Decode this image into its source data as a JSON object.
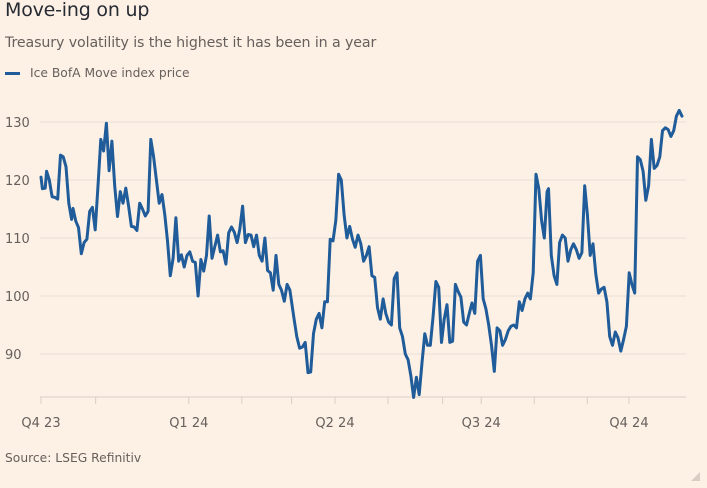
{
  "chart_data": {
    "type": "line",
    "title": "Move-ing on up",
    "subtitle": "Treasury volatility is the highest it has been in a year",
    "source": "Source: LSEG Refinitiv",
    "legend": [
      {
        "name": "Ice BofA Move index price",
        "color": "#1f5c99"
      }
    ],
    "legend_position": "top-left",
    "xlabel": "",
    "ylabel": "",
    "ylim": [
      82,
      131
    ],
    "yticks": [
      90,
      100,
      110,
      120,
      130
    ],
    "xlim": [
      "2023-10-01",
      "2024-10-31"
    ],
    "xticks": [
      {
        "date": "2023-10-01",
        "label": "Q4 23"
      },
      {
        "date": "2023-11-04",
        "label": ""
      },
      {
        "date": "2024-01-01",
        "label": "Q1 24"
      },
      {
        "date": "2024-02-03",
        "label": ""
      },
      {
        "date": "2024-03-05",
        "label": ""
      },
      {
        "date": "2024-04-01",
        "label": "Q2 24"
      },
      {
        "date": "2024-05-04",
        "label": ""
      },
      {
        "date": "2024-06-07",
        "label": ""
      },
      {
        "date": "2024-07-01",
        "label": "Q3 24"
      },
      {
        "date": "2024-08-03",
        "label": ""
      },
      {
        "date": "2024-09-05",
        "label": ""
      },
      {
        "date": "2024-10-01",
        "label": "Q4 24"
      }
    ],
    "grid": "horizontal",
    "series": [
      {
        "name": "Ice BofA Move index price",
        "color": "#1f5c99",
        "points": [
          [
            "2023-10-02",
            120.5
          ],
          [
            "2023-10-03",
            118.5
          ],
          [
            "2023-10-05",
            118.6
          ],
          [
            "2023-10-06",
            121.5
          ],
          [
            "2023-10-08",
            120.0
          ],
          [
            "2023-10-10",
            117.1
          ],
          [
            "2023-10-12",
            117.0
          ],
          [
            "2023-10-14",
            116.7
          ],
          [
            "2023-10-16",
            124.3
          ],
          [
            "2023-10-18",
            124.0
          ],
          [
            "2023-10-20",
            122.3
          ],
          [
            "2023-10-22",
            116.0
          ],
          [
            "2023-10-24",
            113.2
          ],
          [
            "2023-10-25",
            115.1
          ],
          [
            "2023-10-27",
            112.9
          ],
          [
            "2023-10-29",
            111.8
          ],
          [
            "2023-10-31",
            107.3
          ],
          [
            "2023-11-02",
            109.2
          ],
          [
            "2023-11-04",
            109.8
          ],
          [
            "2023-11-06",
            114.6
          ],
          [
            "2023-11-08",
            115.3
          ],
          [
            "2023-11-10",
            111.4
          ],
          [
            "2023-11-12",
            119.0
          ],
          [
            "2023-11-14",
            127.0
          ],
          [
            "2023-11-16",
            125.0
          ],
          [
            "2023-11-18",
            129.8
          ],
          [
            "2023-11-20",
            121.6
          ],
          [
            "2023-11-22",
            126.7
          ],
          [
            "2023-11-24",
            119.0
          ],
          [
            "2023-11-26",
            113.7
          ],
          [
            "2023-11-28",
            118.0
          ],
          [
            "2023-11-30",
            116.0
          ],
          [
            "2023-12-02",
            118.6
          ],
          [
            "2023-12-04",
            115.5
          ],
          [
            "2023-12-06",
            112.0
          ],
          [
            "2023-12-08",
            111.9
          ],
          [
            "2023-12-10",
            111.3
          ],
          [
            "2023-12-12",
            116.0
          ],
          [
            "2023-12-14",
            115.0
          ],
          [
            "2023-12-16",
            113.8
          ],
          [
            "2023-12-18",
            114.6
          ],
          [
            "2023-12-20",
            127.0
          ],
          [
            "2023-12-22",
            124.0
          ],
          [
            "2023-12-24",
            120.0
          ],
          [
            "2023-12-26",
            116.0
          ],
          [
            "2023-12-28",
            117.5
          ],
          [
            "2023-12-30",
            114.0
          ],
          [
            "2024-01-01",
            109.5
          ],
          [
            "2024-01-03",
            103.5
          ],
          [
            "2024-01-05",
            106.5
          ],
          [
            "2024-01-07",
            113.5
          ],
          [
            "2024-01-09",
            106.0
          ],
          [
            "2024-01-11",
            107.1
          ],
          [
            "2024-01-13",
            105.0
          ],
          [
            "2024-01-15",
            107.0
          ],
          [
            "2024-01-17",
            107.6
          ],
          [
            "2024-01-19",
            106.0
          ],
          [
            "2024-01-21",
            105.8
          ],
          [
            "2024-01-23",
            100.0
          ],
          [
            "2024-01-25",
            106.3
          ],
          [
            "2024-01-27",
            104.3
          ],
          [
            "2024-01-29",
            107.0
          ],
          [
            "2024-01-31",
            113.8
          ],
          [
            "2024-02-02",
            106.5
          ],
          [
            "2024-02-04",
            108.5
          ],
          [
            "2024-02-06",
            110.5
          ],
          [
            "2024-02-08",
            107.6
          ],
          [
            "2024-02-10",
            107.8
          ],
          [
            "2024-02-12",
            105.5
          ],
          [
            "2024-02-14",
            110.9
          ],
          [
            "2024-02-16",
            111.9
          ],
          [
            "2024-02-18",
            111.0
          ],
          [
            "2024-02-20",
            109.2
          ],
          [
            "2024-02-22",
            111.5
          ],
          [
            "2024-02-24",
            115.5
          ],
          [
            "2024-02-26",
            109.2
          ],
          [
            "2024-02-28",
            110.6
          ],
          [
            "2024-03-01",
            110.5
          ],
          [
            "2024-03-03",
            108.5
          ],
          [
            "2024-03-05",
            110.5
          ],
          [
            "2024-03-07",
            107.0
          ],
          [
            "2024-03-09",
            106.0
          ],
          [
            "2024-03-11",
            110.0
          ],
          [
            "2024-03-13",
            104.4
          ],
          [
            "2024-03-15",
            104.0
          ],
          [
            "2024-03-17",
            101.0
          ],
          [
            "2024-03-19",
            107.0
          ],
          [
            "2024-03-21",
            102.0
          ],
          [
            "2024-03-23",
            101.0
          ],
          [
            "2024-03-25",
            99.1
          ],
          [
            "2024-03-27",
            102.0
          ],
          [
            "2024-03-29",
            101.0
          ],
          [
            "2024-04-01",
            96.0
          ],
          [
            "2024-04-03",
            93.0
          ],
          [
            "2024-04-05",
            91.0
          ],
          [
            "2024-04-07",
            91.2
          ],
          [
            "2024-04-09",
            92.0
          ],
          [
            "2024-04-11",
            86.8
          ],
          [
            "2024-04-13",
            86.9
          ],
          [
            "2024-04-15",
            93.5
          ],
          [
            "2024-04-17",
            96.0
          ],
          [
            "2024-04-19",
            97.0
          ],
          [
            "2024-04-21",
            94.5
          ],
          [
            "2024-04-23",
            99.0
          ],
          [
            "2024-04-25",
            99.0
          ],
          [
            "2024-04-27",
            109.8
          ],
          [
            "2024-04-29",
            109.5
          ],
          [
            "2024-05-01",
            113.0
          ],
          [
            "2024-05-03",
            121.0
          ],
          [
            "2024-05-05",
            120.0
          ],
          [
            "2024-05-07",
            114.0
          ],
          [
            "2024-05-09",
            110.0
          ],
          [
            "2024-05-11",
            112.0
          ],
          [
            "2024-05-13",
            109.8
          ],
          [
            "2024-05-15",
            108.4
          ],
          [
            "2024-05-17",
            110.5
          ],
          [
            "2024-05-19",
            109.0
          ],
          [
            "2024-05-21",
            106.0
          ],
          [
            "2024-05-23",
            107.0
          ],
          [
            "2024-05-25",
            108.5
          ],
          [
            "2024-05-27",
            103.5
          ],
          [
            "2024-05-29",
            103.2
          ],
          [
            "2024-05-31",
            98.0
          ],
          [
            "2024-06-02",
            96.0
          ],
          [
            "2024-06-04",
            99.5
          ],
          [
            "2024-06-06",
            97.0
          ],
          [
            "2024-06-08",
            95.5
          ],
          [
            "2024-06-10",
            95.0
          ],
          [
            "2024-06-12",
            103.0
          ],
          [
            "2024-06-14",
            104.0
          ],
          [
            "2024-06-16",
            94.5
          ],
          [
            "2024-06-18",
            93.0
          ],
          [
            "2024-06-20",
            90.0
          ],
          [
            "2024-06-22",
            89.0
          ],
          [
            "2024-06-24",
            86.2
          ],
          [
            "2024-06-26",
            82.5
          ],
          [
            "2024-06-28",
            86.0
          ],
          [
            "2024-06-30",
            83.0
          ],
          [
            "2024-07-02",
            88.5
          ],
          [
            "2024-07-04",
            93.5
          ],
          [
            "2024-07-06",
            91.5
          ],
          [
            "2024-07-08",
            91.5
          ],
          [
            "2024-07-10",
            96.5
          ],
          [
            "2024-07-12",
            102.5
          ],
          [
            "2024-07-14",
            101.5
          ],
          [
            "2024-07-16",
            92.0
          ],
          [
            "2024-07-18",
            96.0
          ],
          [
            "2024-07-20",
            98.5
          ],
          [
            "2024-07-22",
            92.0
          ],
          [
            "2024-07-24",
            92.2
          ],
          [
            "2024-07-26",
            102.0
          ],
          [
            "2024-07-28",
            100.8
          ],
          [
            "2024-07-30",
            99.8
          ],
          [
            "2024-08-01",
            95.5
          ],
          [
            "2024-08-03",
            95.0
          ],
          [
            "2024-08-05",
            97.0
          ],
          [
            "2024-08-07",
            98.8
          ],
          [
            "2024-08-09",
            97.0
          ],
          [
            "2024-08-11",
            106.0
          ],
          [
            "2024-08-13",
            107.0
          ],
          [
            "2024-08-15",
            99.5
          ],
          [
            "2024-08-17",
            97.8
          ],
          [
            "2024-08-19",
            95.0
          ],
          [
            "2024-08-21",
            91.5
          ],
          [
            "2024-08-23",
            87.0
          ],
          [
            "2024-08-25",
            94.5
          ],
          [
            "2024-08-27",
            94.0
          ],
          [
            "2024-08-29",
            91.5
          ],
          [
            "2024-08-31",
            92.5
          ],
          [
            "2024-09-02",
            94.0
          ],
          [
            "2024-09-04",
            94.8
          ],
          [
            "2024-09-06",
            95.0
          ],
          [
            "2024-09-08",
            94.5
          ],
          [
            "2024-09-10",
            99.0
          ],
          [
            "2024-09-12",
            97.5
          ],
          [
            "2024-09-14",
            99.5
          ],
          [
            "2024-09-16",
            100.5
          ],
          [
            "2024-09-18",
            99.5
          ],
          [
            "2024-09-20",
            104.0
          ],
          [
            "2024-09-22",
            121.0
          ],
          [
            "2024-09-24",
            118.5
          ],
          [
            "2024-09-26",
            113.0
          ],
          [
            "2024-09-28",
            110.0
          ],
          [
            "2024-09-30",
            118.0
          ],
          [
            "2024-10-01",
            118.5
          ],
          [
            "2024-10-03",
            107.0
          ],
          [
            "2024-10-05",
            103.5
          ],
          [
            "2024-10-07",
            102.0
          ],
          [
            "2024-10-09",
            109.2
          ],
          [
            "2024-10-11",
            110.5
          ],
          [
            "2024-10-13",
            110.0
          ],
          [
            "2024-10-15",
            106.0
          ],
          [
            "2024-10-17",
            108.0
          ],
          [
            "2024-10-19",
            109.0
          ],
          [
            "2024-10-21",
            108.0
          ],
          [
            "2024-10-23",
            106.5
          ],
          [
            "2024-10-25",
            107.5
          ],
          [
            "2024-10-27",
            119.0
          ],
          [
            "2024-10-29",
            114.0
          ],
          [
            "2024-10-31",
            107.0
          ],
          [
            "2024-11-02",
            109.0
          ],
          [
            "2024-11-04",
            103.8
          ],
          [
            "2024-11-06",
            100.5
          ],
          [
            "2024-11-08",
            101.2
          ],
          [
            "2024-11-10",
            101.5
          ],
          [
            "2024-11-12",
            99.0
          ],
          [
            "2024-11-14",
            93.0
          ],
          [
            "2024-11-16",
            91.5
          ],
          [
            "2024-11-18",
            93.8
          ],
          [
            "2024-11-20",
            92.8
          ],
          [
            "2024-11-22",
            90.5
          ],
          [
            "2024-11-24",
            92.5
          ],
          [
            "2024-11-26",
            94.8
          ],
          [
            "2024-11-28",
            104.0
          ],
          [
            "2024-11-30",
            102.0
          ],
          [
            "2024-12-02",
            100.5
          ],
          [
            "2024-12-04",
            124.0
          ],
          [
            "2024-12-06",
            123.5
          ],
          [
            "2024-12-08",
            121.5
          ],
          [
            "2024-12-10",
            116.5
          ],
          [
            "2024-12-12",
            119.0
          ],
          [
            "2024-12-14",
            127.0
          ],
          [
            "2024-12-16",
            122.0
          ],
          [
            "2024-12-18",
            122.5
          ],
          [
            "2024-12-20",
            124.0
          ],
          [
            "2024-12-22",
            128.5
          ],
          [
            "2024-12-24",
            129.0
          ],
          [
            "2024-12-26",
            128.7
          ],
          [
            "2024-12-28",
            127.5
          ],
          [
            "2024-12-30",
            128.5
          ],
          [
            "2025-01-01",
            131.0
          ],
          [
            "2025-01-03",
            132.0
          ],
          [
            "2025-01-05",
            131.0
          ]
        ]
      }
    ]
  }
}
